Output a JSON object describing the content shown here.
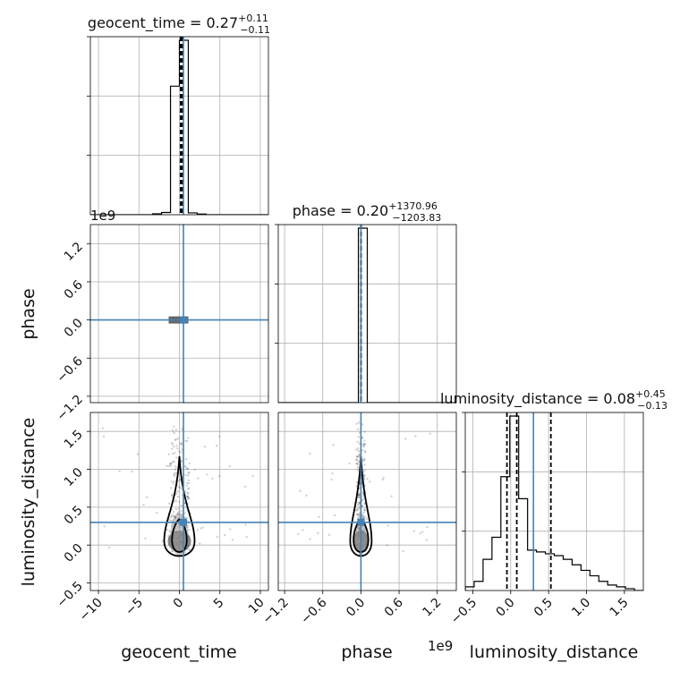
{
  "chart_data": {
    "type": "corner",
    "parameters": [
      {
        "key": "geocent_time",
        "label": "geocent_time",
        "title_main": "geocent_time = 0.27",
        "title_sup": "+0.11",
        "title_sub": "−0.11",
        "range": [
          -11,
          11
        ],
        "ticks": [
          "−10",
          "−5",
          "0",
          "5",
          "10"
        ],
        "tick_values": [
          -10,
          -5,
          0,
          5,
          10
        ],
        "offset_text": "",
        "truth": 0.5,
        "quantiles": [
          0.16,
          0.27,
          0.38
        ]
      },
      {
        "key": "phase",
        "label": "phase",
        "title_main": "phase = 0.20",
        "title_sup": "+1370.96",
        "title_sub": "−1203.83",
        "range": [
          -1.3,
          1.5
        ],
        "ticks": [
          "−1.2",
          "−0.6",
          "0.0",
          "0.6",
          "1.2"
        ],
        "tick_values": [
          -1.2,
          -0.6,
          0.0,
          0.6,
          1.2
        ],
        "offset_text": "1e9",
        "truth": 0.0,
        "quantiles": [
          -0.0012,
          0.0,
          0.0014
        ]
      },
      {
        "key": "luminosity_distance",
        "label": "luminosity_distance",
        "title_main": "luminosity_distance = 0.08",
        "title_sup": "+0.45",
        "title_sub": "−0.13",
        "range": [
          -0.6,
          1.75
        ],
        "ticks": [
          "−0.5",
          "0.0",
          "0.5",
          "1.0",
          "1.5"
        ],
        "tick_values": [
          -0.5,
          0.0,
          0.5,
          1.0,
          1.5
        ],
        "offset_text": "1e9",
        "truth": 0.3,
        "quantiles": [
          -0.05,
          0.08,
          0.53
        ]
      }
    ],
    "histograms": {
      "geocent_time": {
        "edges": [
          -11,
          -9.9,
          -8.8,
          -7.7,
          -6.6,
          -5.5,
          -4.4,
          -3.3,
          -2.2,
          -1.1,
          0.0,
          1.1,
          2.2,
          3.3,
          4.4,
          5.5,
          6.6,
          7.7,
          8.8,
          9.9,
          11
        ],
        "counts": [
          0,
          0,
          0,
          0,
          0,
          0,
          0,
          0.005,
          0.012,
          0.7,
          0.95,
          0.01,
          0.004,
          0,
          0,
          0,
          0,
          0,
          0,
          0
        ]
      },
      "phase": {
        "edges": [
          -1.3,
          -1.16,
          -1.02,
          -0.88,
          -0.74,
          -0.6,
          -0.46,
          -0.32,
          -0.18,
          -0.04,
          0.1,
          0.24,
          0.38,
          0.52,
          0.66,
          0.8,
          0.94,
          1.08,
          1.22,
          1.36,
          1.5
        ],
        "counts": [
          0,
          0,
          0,
          0,
          0,
          0,
          0,
          0,
          0,
          1.0,
          0,
          0,
          0,
          0,
          0,
          0,
          0,
          0,
          0,
          0
        ]
      },
      "luminosity_distance": {
        "edges": [
          -0.6,
          -0.4825,
          -0.365,
          -0.2475,
          -0.13,
          -0.0125,
          0.105,
          0.2225,
          0.34,
          0.4575,
          0.575,
          0.6925,
          0.81,
          0.9275,
          1.045,
          1.1625,
          1.28,
          1.3975,
          1.515,
          1.6325,
          1.75
        ],
        "counts": [
          0.02,
          0.05,
          0.17,
          0.29,
          0.62,
          0.95,
          0.5,
          0.22,
          0.21,
          0.2,
          0.19,
          0.17,
          0.14,
          0.11,
          0.08,
          0.05,
          0.03,
          0.02,
          0.01,
          0
        ]
      }
    },
    "truth_color": "#4682b4",
    "hist_color": "#000000",
    "quantile_style": "dashed",
    "grid": true
  }
}
